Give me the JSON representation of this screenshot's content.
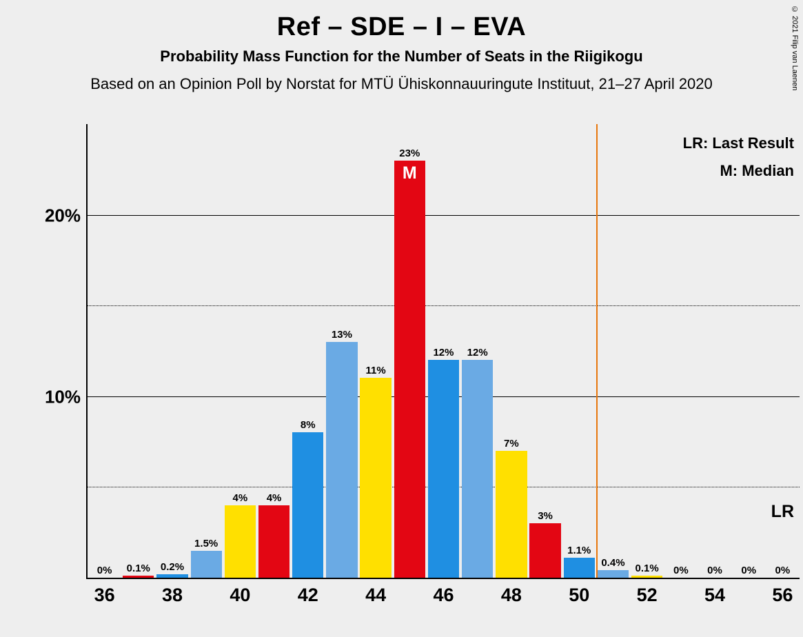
{
  "copyright": "© 2021 Filip van Laenen",
  "title": "Ref – SDE – I – EVA",
  "subtitle": "Probability Mass Function for the Number of Seats in the Riigikogu",
  "subtitle2": "Based on an Opinion Poll by Norstat for MTÜ Ühiskonnauuringute Instituut, 21–27 April 2020",
  "legend": {
    "lr": "LR: Last Result",
    "m": "M: Median"
  },
  "chart": {
    "type": "bar",
    "background_color": "#eeeeee",
    "axis_color": "#000000",
    "lr_line_color": "#e8760c",
    "lr_line_x": 50.5,
    "lr_label": "LR",
    "median_x": 45,
    "median_label": "M",
    "xlim": [
      36,
      56
    ],
    "xtick_step": 2,
    "ylim": [
      0,
      25
    ],
    "ytick_major": [
      10,
      20
    ],
    "ytick_minor": [
      5,
      15
    ],
    "ytick_labels": [
      "10%",
      "20%"
    ],
    "bar_width_ratio": 0.92,
    "colors": {
      "blue_light": "#6aaae4",
      "blue": "#1f8fe2",
      "yellow": "#ffe000",
      "red": "#e30613"
    },
    "bars": [
      {
        "x": 36,
        "value": 0,
        "label": "0%",
        "color": "#6aaae4"
      },
      {
        "x": 37,
        "value": 0.1,
        "label": "0.1%",
        "color": "#e30613"
      },
      {
        "x": 38,
        "value": 0.2,
        "label": "0.2%",
        "color": "#1f8fe2"
      },
      {
        "x": 39,
        "value": 1.5,
        "label": "1.5%",
        "color": "#6aaae4"
      },
      {
        "x": 40,
        "value": 4,
        "label": "4%",
        "color": "#ffe000"
      },
      {
        "x": 41,
        "value": 4,
        "label": "4%",
        "color": "#e30613"
      },
      {
        "x": 42,
        "value": 8,
        "label": "8%",
        "color": "#1f8fe2"
      },
      {
        "x": 43,
        "value": 13,
        "label": "13%",
        "color": "#6aaae4"
      },
      {
        "x": 44,
        "value": 11,
        "label": "11%",
        "color": "#ffe000"
      },
      {
        "x": 45,
        "value": 23,
        "label": "23%",
        "color": "#e30613"
      },
      {
        "x": 46,
        "value": 12,
        "label": "12%",
        "color": "#1f8fe2"
      },
      {
        "x": 47,
        "value": 12,
        "label": "12%",
        "color": "#6aaae4"
      },
      {
        "x": 48,
        "value": 7,
        "label": "7%",
        "color": "#ffe000"
      },
      {
        "x": 49,
        "value": 3,
        "label": "3%",
        "color": "#e30613"
      },
      {
        "x": 50,
        "value": 1.1,
        "label": "1.1%",
        "color": "#1f8fe2"
      },
      {
        "x": 51,
        "value": 0.4,
        "label": "0.4%",
        "color": "#6aaae4"
      },
      {
        "x": 52,
        "value": 0.1,
        "label": "0.1%",
        "color": "#ffe000"
      },
      {
        "x": 53,
        "value": 0,
        "label": "0%",
        "color": "#e30613"
      },
      {
        "x": 54,
        "value": 0,
        "label": "0%",
        "color": "#1f8fe2"
      },
      {
        "x": 55,
        "value": 0,
        "label": "0%",
        "color": "#6aaae4"
      },
      {
        "x": 56,
        "value": 0,
        "label": "0%",
        "color": "#ffe000"
      }
    ]
  }
}
